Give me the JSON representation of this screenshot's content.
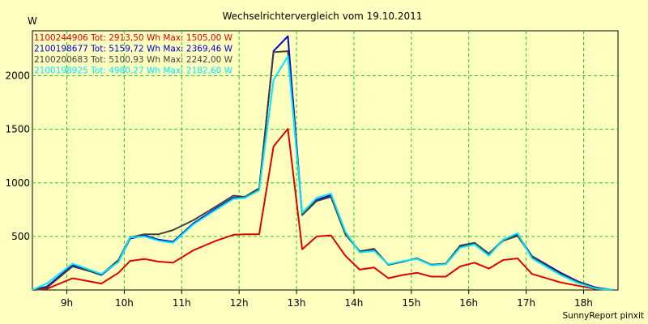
{
  "chart_data": {
    "type": "line",
    "title": "Wechselrichtervergleich vom 19.10.2011",
    "ylabel": "W",
    "xlabel": "",
    "footer": "SunnyReport pinxit",
    "x_range": [
      8.4,
      18.6
    ],
    "ylim": [
      0,
      2420
    ],
    "x_ticks": [
      {
        "value": 9,
        "label": "9h"
      },
      {
        "value": 10,
        "label": "10h"
      },
      {
        "value": 11,
        "label": "11h"
      },
      {
        "value": 12,
        "label": "12h"
      },
      {
        "value": 13,
        "label": "13h"
      },
      {
        "value": 14,
        "label": "14h"
      },
      {
        "value": 15,
        "label": "15h"
      },
      {
        "value": 16,
        "label": "16h"
      },
      {
        "value": 17,
        "label": "17h"
      },
      {
        "value": 18,
        "label": "18h"
      }
    ],
    "y_ticks": [
      {
        "value": 500,
        "label": "500"
      },
      {
        "value": 1000,
        "label": "1000"
      },
      {
        "value": 1500,
        "label": "1500"
      },
      {
        "value": 2000,
        "label": "2000"
      }
    ],
    "grid": true,
    "legend_position": "top-left",
    "x": [
      8.4,
      8.65,
      9.1,
      9.6,
      9.9,
      10.1,
      10.35,
      10.6,
      10.85,
      11.2,
      11.6,
      11.9,
      12.1,
      12.35,
      12.6,
      12.85,
      13.1,
      13.35,
      13.6,
      13.85,
      14.1,
      14.35,
      14.6,
      14.85,
      15.1,
      15.35,
      15.6,
      15.85,
      16.1,
      16.35,
      16.6,
      16.85,
      17.1,
      17.6,
      17.9,
      18.2,
      18.5
    ],
    "series": [
      {
        "name": "1100244906",
        "label": "1100244906 Tot: 2913,50 Wh Max: 1505,00 W",
        "color": "#e00000",
        "values": [
          0,
          10,
          110,
          60,
          160,
          270,
          290,
          265,
          255,
          370,
          460,
          515,
          520,
          520,
          1340,
          1505,
          380,
          500,
          510,
          320,
          190,
          210,
          110,
          140,
          160,
          125,
          125,
          220,
          255,
          200,
          280,
          295,
          150,
          70,
          40,
          10,
          0
        ]
      },
      {
        "name": "2100198677",
        "label": "2100198677 Tot: 5159,72 Wh Max: 2369,46 W",
        "color": "#0000d0",
        "values": [
          0,
          30,
          230,
          140,
          265,
          480,
          510,
          470,
          450,
          620,
          760,
          860,
          860,
          940,
          2230,
          2369,
          700,
          840,
          885,
          530,
          360,
          380,
          235,
          265,
          295,
          235,
          245,
          410,
          440,
          335,
          470,
          520,
          315,
          160,
          80,
          25,
          0
        ]
      },
      {
        "name": "2100200683",
        "label": "2100200683 Tot: 5100,93 Wh Max: 2242,00 W",
        "color": "#404040",
        "values": [
          0,
          20,
          220,
          145,
          280,
          490,
          520,
          520,
          560,
          650,
          780,
          880,
          870,
          950,
          2220,
          2230,
          700,
          830,
          870,
          520,
          360,
          385,
          235,
          265,
          295,
          235,
          245,
          415,
          440,
          340,
          460,
          505,
          310,
          150,
          75,
          20,
          0
        ]
      },
      {
        "name": "2100198925",
        "label": "2100198925 Tot: 4980,27 Wh Max: 2182,60 W",
        "color": "#00e8ff",
        "values": [
          0,
          60,
          245,
          150,
          260,
          490,
          500,
          460,
          440,
          610,
          750,
          850,
          860,
          930,
          1960,
          2182,
          720,
          860,
          900,
          545,
          350,
          365,
          240,
          270,
          290,
          230,
          240,
          395,
          425,
          320,
          470,
          530,
          295,
          140,
          65,
          15,
          0
        ]
      }
    ]
  }
}
